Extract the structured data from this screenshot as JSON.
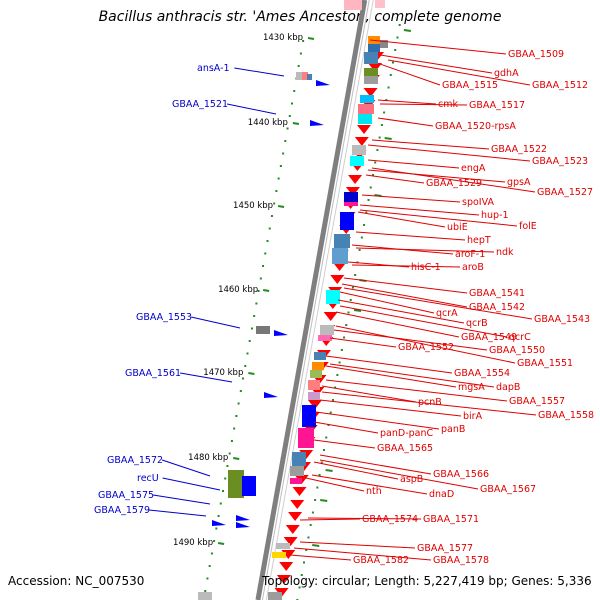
{
  "title": "Bacillus anthracis str. 'Ames Ancestor', complete genome",
  "footer": {
    "accession": "Accession: NC_007530",
    "topology": "Topology: circular; Length: 5,227,419 bp; Genes: 5,336"
  },
  "colors": {
    "backbone": "#7f7f7f",
    "tick": "#228b22",
    "left_label": "#0000cc",
    "right_label": "#e00000",
    "cds": "#ff0000",
    "left_cds": "#0000ff"
  },
  "kbp_ticks": [
    "1430 kbp",
    "1440 kbp",
    "1450 kbp",
    "1460 kbp",
    "1470 kbp",
    "1480 kbp",
    "1490 kbp"
  ],
  "left_labels": [
    "ansA-1",
    "GBAA_1521",
    "GBAA_1553",
    "GBAA_1561",
    "GBAA_1572",
    "recU",
    "GBAA_1575",
    "GBAA_1579"
  ],
  "right_labels": [
    "GBAA_1509",
    "gdhA",
    "GBAA_1515",
    "GBAA_1512",
    "cmk",
    "GBAA_1517",
    "GBAA_1520-rpsA",
    "GBAA_1522",
    "GBAA_1523",
    "engA",
    "GBAA_1529",
    "gpsA",
    "GBAA_1527",
    "spoIVA",
    "hup-1",
    "ubiE",
    "folE",
    "hepT",
    "aroF-1",
    "ndk",
    "hisC-1",
    "aroB",
    "GBAA_1541",
    "GBAA_1542",
    "qcrA",
    "GBAA_1543",
    "qcrB",
    "GBAA_1549",
    "qcrC",
    "GBAA_1552",
    "GBAA_1550",
    "GBAA_1551",
    "GBAA_1554",
    "mgsA",
    "dapB",
    "pcnB",
    "GBAA_1557",
    "birA",
    "GBAA_1558",
    "panB",
    "panD-panC",
    "GBAA_1565",
    "GBAA_1566",
    "aspB",
    "GBAA_1567",
    "nth",
    "dnaD",
    "GBAA_1574",
    "GBAA_1571",
    "GBAA_1577",
    "GBAA_1582",
    "GBAA_1578"
  ]
}
